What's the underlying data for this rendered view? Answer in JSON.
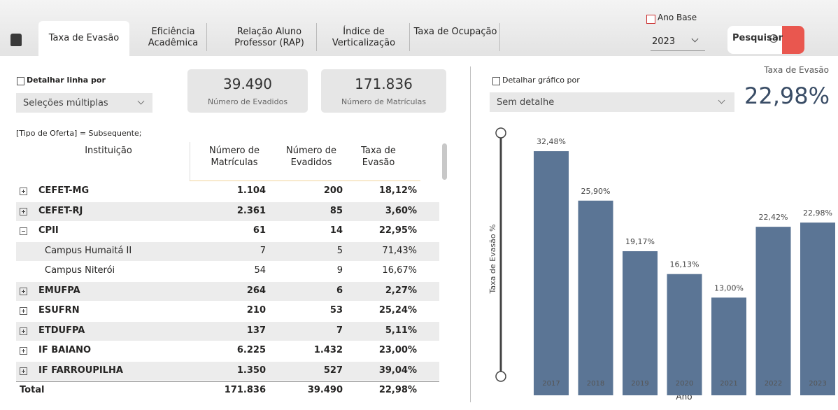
{
  "tabs": [
    "Taxa de Evasão",
    "Eficiência Acadêmica",
    "Relação Aluno Professor (RAP)",
    "Índice de Verticalização",
    "Taxa de Ocupação"
  ],
  "active_tab": 0,
  "ano_base": {
    "label": "Ano Base",
    "value": "2023"
  },
  "search": "Pesquisar",
  "left_filter": {
    "label": "Detalhar linha por",
    "value": "Seleções múltiplas"
  },
  "kpis": [
    {
      "value": "39.490",
      "label": "Número de Evadidos"
    },
    {
      "value": "171.836",
      "label": "Número de Matrículas"
    }
  ],
  "filter_note": "[Tipo de Oferta] = Subsequente;",
  "table": {
    "columns": [
      "Instituição",
      "Número de Matrículas",
      "Número de Evadidos",
      "Taxa de Evasão"
    ],
    "rows": [
      {
        "name": "CEFET-MG",
        "values": [
          "1.104",
          "200",
          "18,12%"
        ],
        "level": 0,
        "expanded": false
      },
      {
        "name": "CEFET-RJ",
        "values": [
          "2.361",
          "85",
          "3,60%"
        ],
        "level": 0,
        "expanded": false
      },
      {
        "name": "CPII",
        "values": [
          "61",
          "14",
          "22,95%"
        ],
        "level": 0,
        "expanded": true
      },
      {
        "name": "Campus Humaitá II",
        "values": [
          "7",
          "5",
          "71,43%"
        ],
        "level": 1
      },
      {
        "name": "Campus Niterói",
        "values": [
          "54",
          "9",
          "16,67%"
        ],
        "level": 1
      },
      {
        "name": "EMUFPA",
        "values": [
          "264",
          "6",
          "2,27%"
        ],
        "level": 0,
        "expanded": false
      },
      {
        "name": "ESUFRN",
        "values": [
          "210",
          "53",
          "25,24%"
        ],
        "level": 0,
        "expanded": false
      },
      {
        "name": "ETDUFPA",
        "values": [
          "137",
          "7",
          "5,11%"
        ],
        "level": 0,
        "expanded": false
      },
      {
        "name": "IF BAIANO",
        "values": [
          "6.225",
          "1.432",
          "23,00%"
        ],
        "level": 0,
        "expanded": false
      },
      {
        "name": "IF FARROUPILHA",
        "values": [
          "1.350",
          "527",
          "39,04%"
        ],
        "level": 0,
        "expanded": false
      }
    ],
    "total": {
      "name": "Total",
      "values": [
        "171.836",
        "39.490",
        "22,98%"
      ]
    }
  },
  "right_filter": {
    "label": "Detalhar gráfico por",
    "value": "Sem detalhe"
  },
  "kpi_rate": {
    "label": "Taxa de Evasão",
    "value": "22,98%"
  },
  "chart_data": {
    "type": "bar",
    "categories": [
      "2017",
      "2018",
      "2019",
      "2020",
      "2021",
      "2022",
      "2023"
    ],
    "values": [
      32.48,
      25.9,
      19.17,
      16.13,
      13.0,
      22.42,
      22.98
    ],
    "value_labels": [
      "32,48%",
      "25,90%",
      "19,17%",
      "16,13%",
      "13,00%",
      "22,42%",
      "22,98%"
    ],
    "x_label": "Ano",
    "y_label": "Taxa de Evasão %",
    "color": "#5b7595",
    "ylim": [
      0,
      35
    ]
  }
}
